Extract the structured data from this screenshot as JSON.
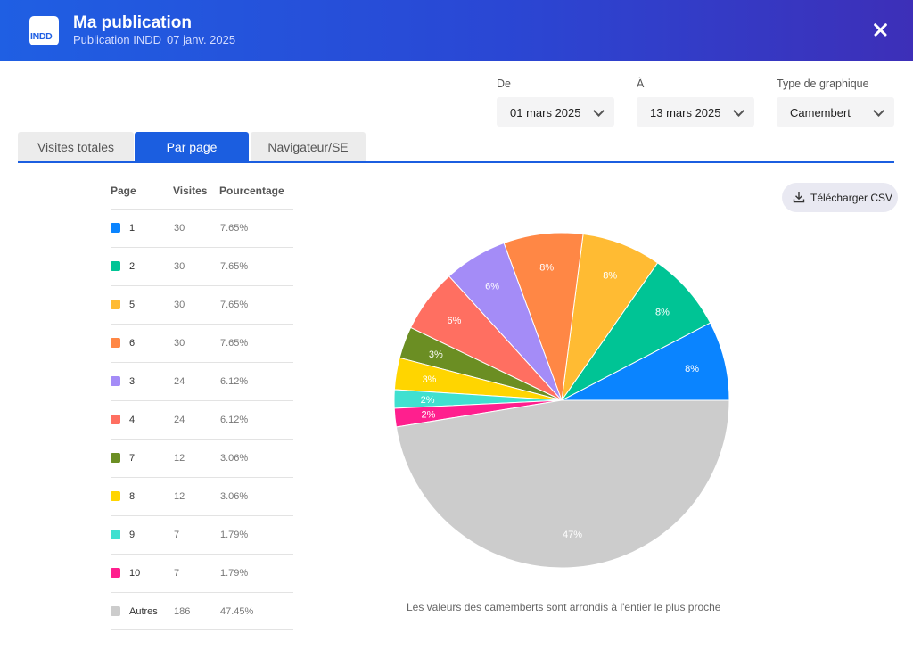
{
  "header": {
    "logo_text": "INDD",
    "title": "Ma publication",
    "type": "Publication INDD",
    "date": "07 janv. 2025"
  },
  "filters": {
    "from_label": "De",
    "from_value": "01 mars 2025",
    "to_label": "À",
    "to_value": "13 mars 2025",
    "chart_type_label": "Type de graphique",
    "chart_type_value": "Camembert"
  },
  "tabs": [
    {
      "label": "Visites totales"
    },
    {
      "label": "Par page"
    },
    {
      "label": "Navigateur/SE"
    }
  ],
  "table": {
    "headers": {
      "page": "Page",
      "visits": "Visites",
      "percent": "Pourcentage"
    },
    "rows": [
      {
        "page": "1",
        "visits": "30",
        "percent": "7.65%",
        "color": "#0a84ff"
      },
      {
        "page": "2",
        "visits": "30",
        "percent": "7.65%",
        "color": "#00c495"
      },
      {
        "page": "5",
        "visits": "30",
        "percent": "7.65%",
        "color": "#ffbb33"
      },
      {
        "page": "6",
        "visits": "30",
        "percent": "7.65%",
        "color": "#ff8745"
      },
      {
        "page": "3",
        "visits": "24",
        "percent": "6.12%",
        "color": "#a48cf7"
      },
      {
        "page": "4",
        "visits": "24",
        "percent": "6.12%",
        "color": "#ff6f61"
      },
      {
        "page": "7",
        "visits": "12",
        "percent": "3.06%",
        "color": "#6b8e23"
      },
      {
        "page": "8",
        "visits": "12",
        "percent": "3.06%",
        "color": "#ffd500"
      },
      {
        "page": "9",
        "visits": "7",
        "percent": "1.79%",
        "color": "#40e0d0"
      },
      {
        "page": "10",
        "visits": "7",
        "percent": "1.79%",
        "color": "#ff1f8e"
      },
      {
        "page": "Autres",
        "visits": "186",
        "percent": "47.45%",
        "color": "#cccccc"
      }
    ]
  },
  "download_label": "Télécharger CSV",
  "note": "Les valeurs des camemberts sont arrondis à l'entier le plus proche",
  "chart_data": {
    "type": "pie",
    "categories": [
      "1",
      "2",
      "5",
      "6",
      "3",
      "4",
      "7",
      "8",
      "9",
      "10",
      "Autres"
    ],
    "values": [
      30,
      30,
      30,
      30,
      24,
      24,
      12,
      12,
      7,
      7,
      186
    ],
    "labels": [
      "8%",
      "8%",
      "8%",
      "8%",
      "6%",
      "6%",
      "3%",
      "3%",
      "2%",
      "2%",
      "47%"
    ],
    "colors": [
      "#0a84ff",
      "#00c495",
      "#ffbb33",
      "#ff8745",
      "#a48cf7",
      "#ff6f61",
      "#6b8e23",
      "#ffd500",
      "#40e0d0",
      "#ff1f8e",
      "#cccccc"
    ]
  }
}
